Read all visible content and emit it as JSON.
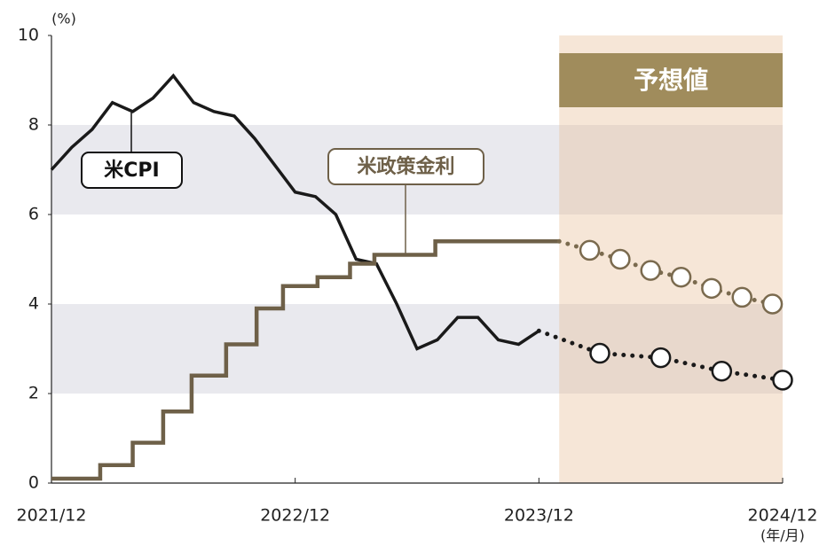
{
  "chart_data": {
    "type": "line",
    "y_unit_label": "(%)",
    "x_axis_label": "(年/月)",
    "xlim": [
      0,
      36
    ],
    "xticks": [
      {
        "value": 0,
        "label": "2021/12"
      },
      {
        "value": 12,
        "label": "2022/12"
      },
      {
        "value": 24,
        "label": "2023/12"
      },
      {
        "value": 36,
        "label": "2024/12"
      }
    ],
    "ylim": [
      0,
      10
    ],
    "yticks": [
      0,
      2,
      4,
      6,
      8,
      10
    ],
    "shaded_bands": [
      [
        2,
        4
      ],
      [
        6,
        8
      ]
    ],
    "forecast_start": 25,
    "forecast_label": "予想値",
    "series": [
      {
        "name": "米CPI",
        "color": "#1a1a1a",
        "style": "line",
        "x": [
          0,
          1,
          2,
          3,
          4,
          5,
          6,
          7,
          8,
          9,
          10,
          11,
          12,
          13,
          14,
          15,
          16,
          17,
          18,
          19,
          20,
          21,
          22,
          23,
          24
        ],
        "values": [
          7.0,
          7.5,
          7.9,
          8.5,
          8.3,
          8.6,
          9.1,
          8.5,
          8.3,
          8.2,
          7.7,
          7.1,
          6.5,
          6.4,
          6.0,
          5.0,
          4.9,
          4.0,
          3.0,
          3.2,
          3.7,
          3.7,
          3.2,
          3.1,
          3.4
        ]
      },
      {
        "name": "米政策金利",
        "color": "#6e6048",
        "style": "step",
        "x": [
          0,
          2.4,
          4,
          5.5,
          6.9,
          8.6,
          10.1,
          11.4,
          13.1,
          14.7,
          15.9,
          18.9,
          25
        ],
        "values": [
          0.1,
          0.4,
          0.9,
          1.6,
          2.4,
          3.1,
          3.9,
          4.4,
          4.6,
          4.9,
          5.1,
          5.4,
          5.4
        ]
      },
      {
        "color": "#1a1a1a",
        "style": "forecast",
        "continues": 0,
        "x": [
          27,
          30,
          33,
          36
        ],
        "values": [
          2.9,
          2.8,
          2.5,
          2.3
        ]
      },
      {
        "color": "#7a6a4e",
        "style": "forecast",
        "continues": 1,
        "x": [
          26.5,
          28,
          29.5,
          31,
          32.5,
          34,
          35.5
        ],
        "values": [
          5.2,
          5.0,
          4.75,
          4.6,
          4.35,
          4.15,
          4.0
        ]
      }
    ]
  }
}
